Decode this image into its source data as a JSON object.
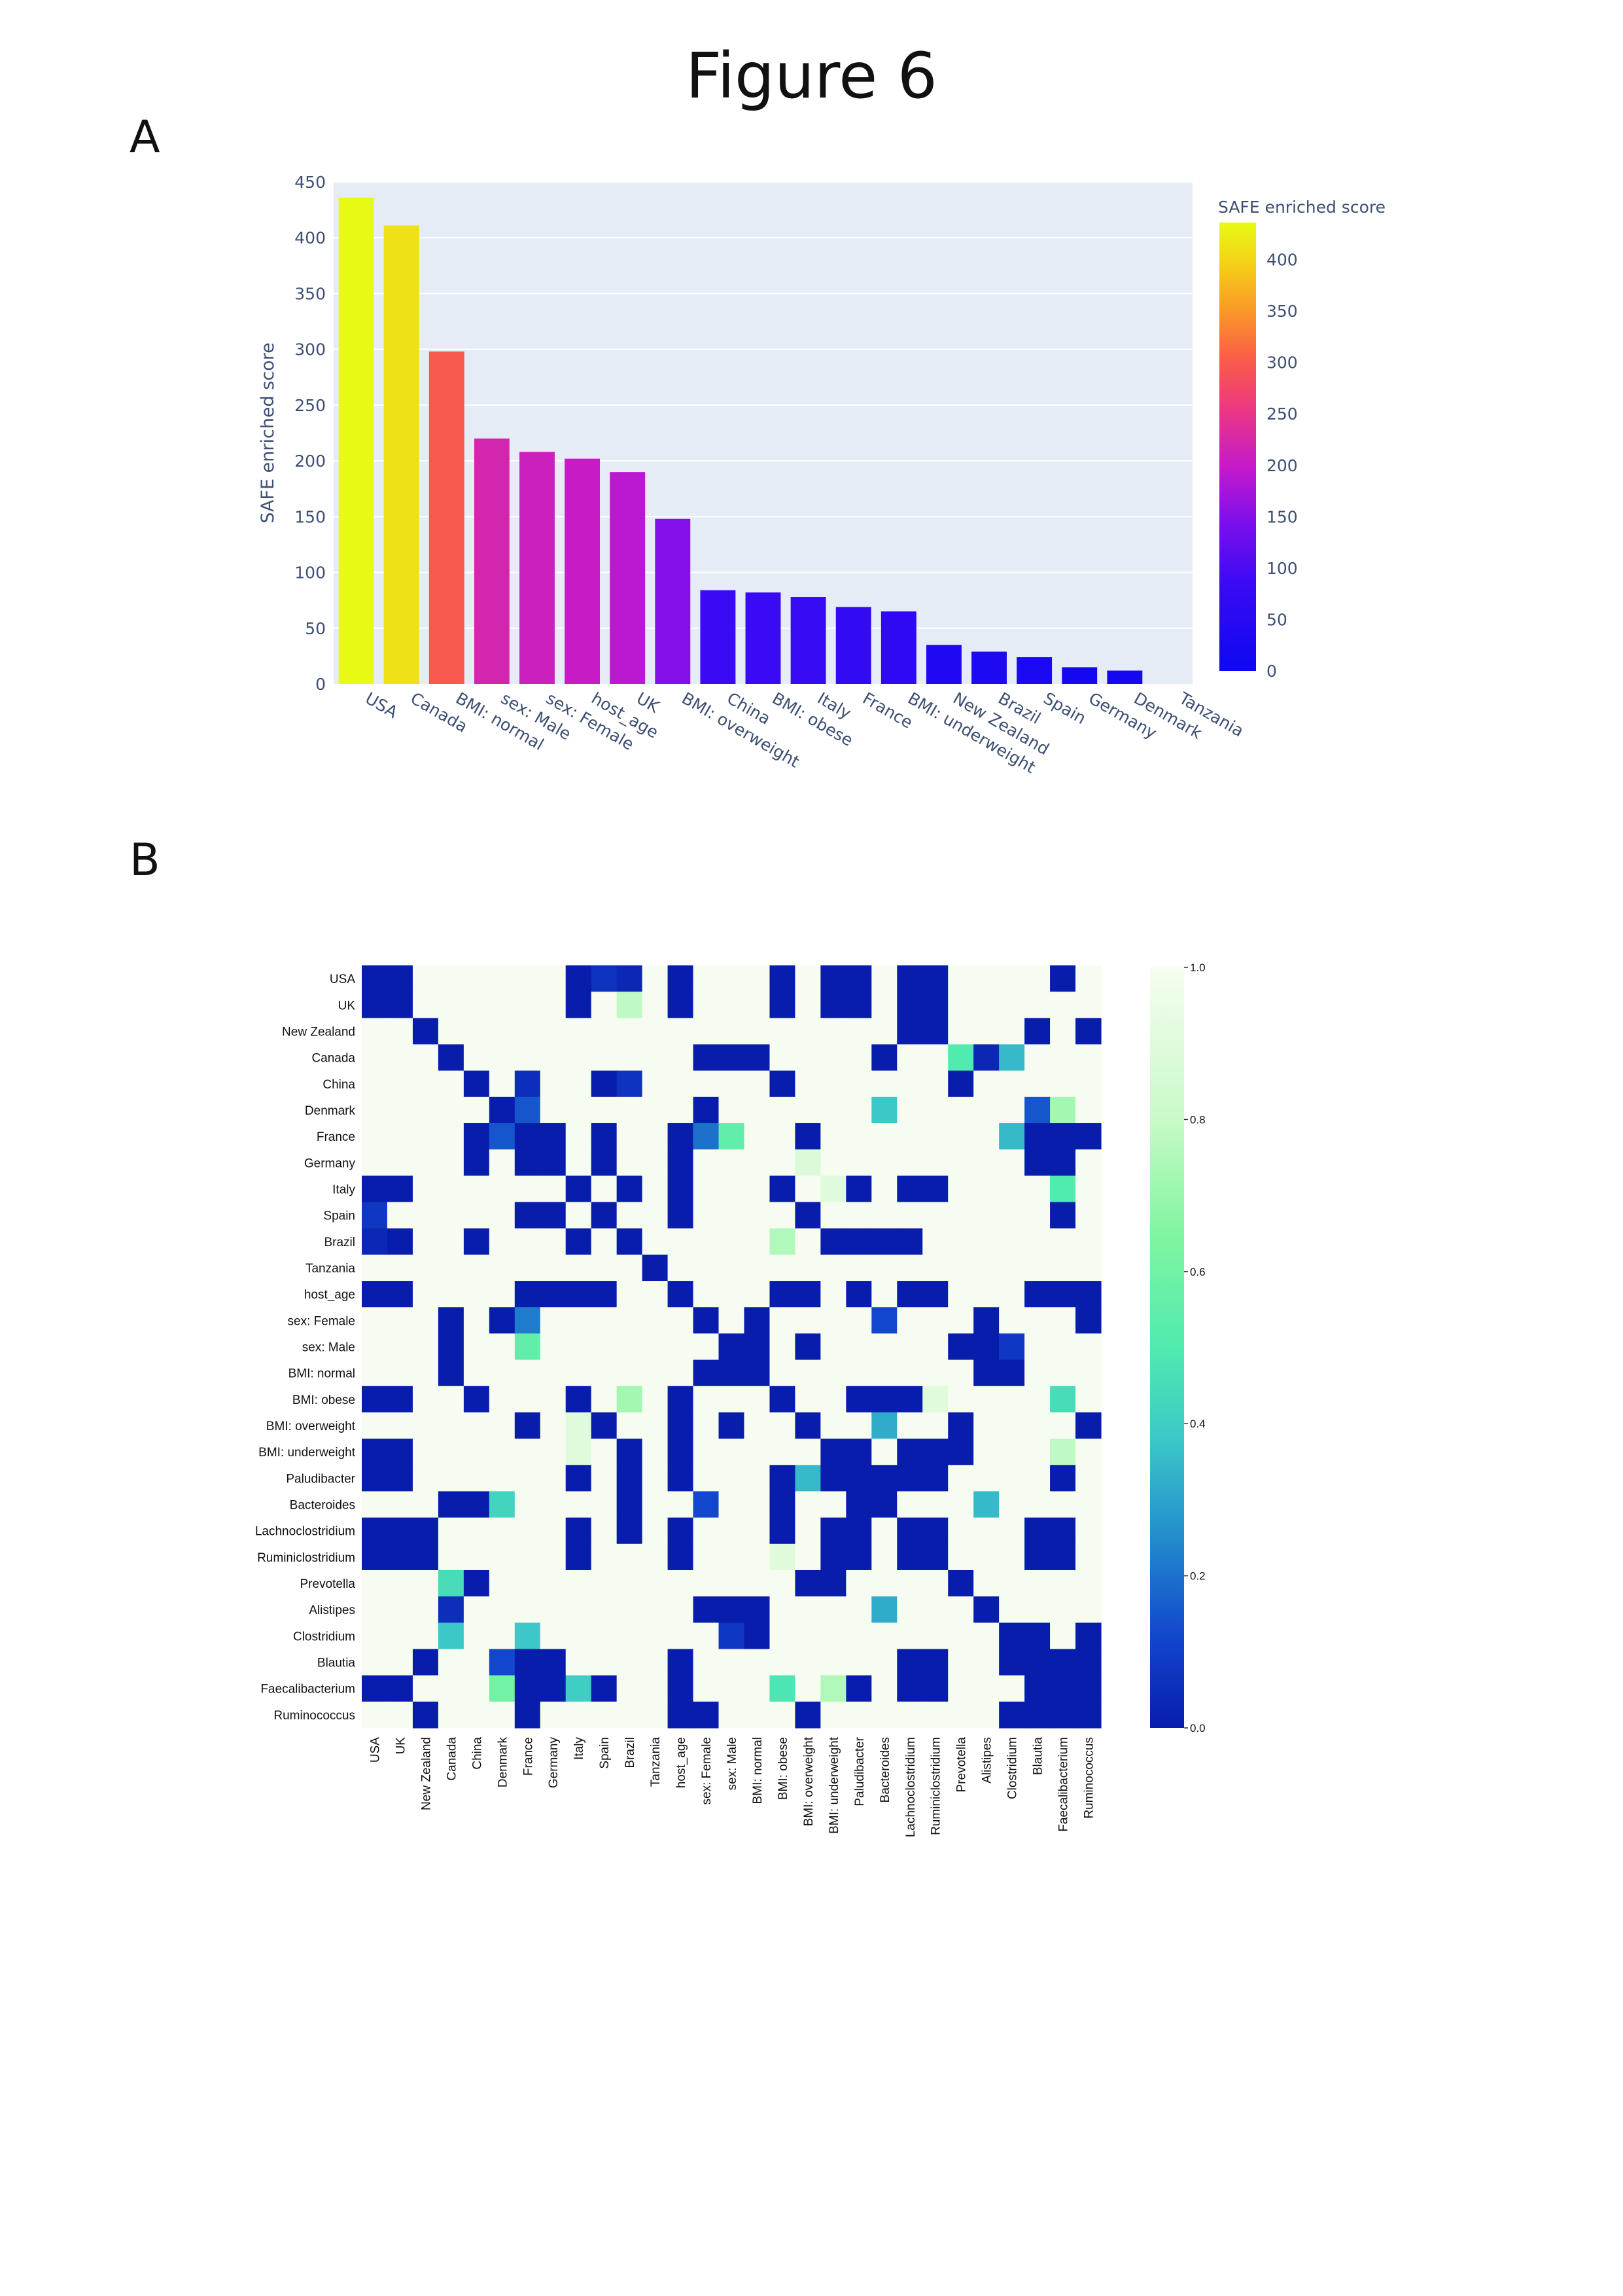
{
  "figure_title": "Figure 6",
  "panel_labels": [
    "A",
    "B"
  ],
  "chart_data": [
    {
      "type": "bar",
      "categories": [
        "USA",
        "Canada",
        "BMI: normal",
        "sex: Male",
        "sex: Female",
        "host_age",
        "UK",
        "BMI: overweight",
        "China",
        "BMI: obese",
        "Italy",
        "France",
        "BMI: underweight",
        "New Zealand",
        "Brazil",
        "Spain",
        "Germany",
        "Denmark",
        "Tanzania"
      ],
      "values": [
        436,
        411,
        298,
        220,
        208,
        202,
        190,
        148,
        84,
        82,
        78,
        69,
        65,
        35,
        29,
        24,
        15,
        12,
        0
      ],
      "ylabel": "SAFE enriched score",
      "ylim": [
        0,
        450
      ],
      "yticks": [
        0,
        50,
        100,
        150,
        200,
        250,
        300,
        350,
        400,
        450
      ],
      "grid": true,
      "colorbar": {
        "title": "SAFE enriched score",
        "range": [
          0,
          436
        ],
        "ticks": [
          0,
          50,
          100,
          150,
          200,
          250,
          300,
          350,
          400
        ]
      },
      "colorscale": "plasma",
      "plot_background": "#e5ecf6"
    },
    {
      "type": "heatmap",
      "labels": [
        "USA",
        "UK",
        "New Zealand",
        "Canada",
        "China",
        "Denmark",
        "France",
        "Germany",
        "Italy",
        "Spain",
        "Brazil",
        "Tanzania",
        "host_age",
        "sex: Female",
        "sex: Male",
        "BMI: normal",
        "BMI: obese",
        "BMI: overweight",
        "BMI: underweight",
        "Paludibacter",
        "Bacteroides",
        "Lachnoclostridium",
        "Ruminiclostridium",
        "Prevotella",
        "Alistipes",
        "Clostridium",
        "Blautia",
        "Faecalibacterium",
        "Ruminococcus"
      ],
      "colorscale": "GnBu_r",
      "colorbar_range": [
        0.0,
        1.0
      ],
      "colorbar_ticks": [
        "0.0",
        "0.2",
        "0.4",
        "0.6",
        "0.8",
        "1.0"
      ],
      "low_cells": [
        [
          0,
          0
        ],
        [
          0,
          1
        ],
        [
          0,
          8
        ],
        [
          0,
          10
        ],
        [
          0,
          12
        ],
        [
          0,
          16
        ],
        [
          0,
          18
        ],
        [
          0,
          19
        ],
        [
          0,
          21
        ],
        [
          0,
          22
        ],
        [
          0,
          27
        ],
        [
          1,
          0
        ],
        [
          1,
          1
        ],
        [
          1,
          8
        ],
        [
          1,
          12
        ],
        [
          1,
          16
        ],
        [
          1,
          18
        ],
        [
          1,
          19
        ],
        [
          1,
          21
        ],
        [
          1,
          22
        ],
        [
          2,
          2
        ],
        [
          2,
          21
        ],
        [
          2,
          22
        ],
        [
          2,
          26
        ],
        [
          2,
          28
        ],
        [
          3,
          3
        ],
        [
          3,
          13
        ],
        [
          3,
          14
        ],
        [
          3,
          15
        ],
        [
          3,
          20
        ],
        [
          3,
          24
        ],
        [
          4,
          4
        ],
        [
          4,
          9
        ],
        [
          4,
          16
        ],
        [
          4,
          23
        ],
        [
          5,
          5
        ],
        [
          5,
          13
        ],
        [
          6,
          4
        ],
        [
          6,
          6
        ],
        [
          6,
          7
        ],
        [
          6,
          9
        ],
        [
          6,
          12
        ],
        [
          6,
          17
        ],
        [
          6,
          26
        ],
        [
          6,
          27
        ],
        [
          6,
          28
        ],
        [
          7,
          4
        ],
        [
          7,
          6
        ],
        [
          7,
          7
        ],
        [
          7,
          9
        ],
        [
          7,
          12
        ],
        [
          7,
          26
        ],
        [
          7,
          27
        ],
        [
          8,
          0
        ],
        [
          8,
          1
        ],
        [
          8,
          8
        ],
        [
          8,
          10
        ],
        [
          8,
          12
        ],
        [
          8,
          16
        ],
        [
          8,
          19
        ],
        [
          8,
          21
        ],
        [
          8,
          22
        ],
        [
          9,
          6
        ],
        [
          9,
          7
        ],
        [
          9,
          9
        ],
        [
          9,
          12
        ],
        [
          9,
          17
        ],
        [
          9,
          27
        ],
        [
          10,
          1
        ],
        [
          10,
          4
        ],
        [
          10,
          8
        ],
        [
          10,
          10
        ],
        [
          10,
          18
        ],
        [
          10,
          19
        ],
        [
          10,
          20
        ],
        [
          10,
          21
        ],
        [
          11,
          11
        ],
        [
          12,
          0
        ],
        [
          12,
          1
        ],
        [
          12,
          6
        ],
        [
          12,
          7
        ],
        [
          12,
          8
        ],
        [
          12,
          9
        ],
        [
          12,
          12
        ],
        [
          12,
          16
        ],
        [
          12,
          17
        ],
        [
          12,
          19
        ],
        [
          12,
          21
        ],
        [
          12,
          22
        ],
        [
          12,
          26
        ],
        [
          12,
          27
        ],
        [
          12,
          28
        ],
        [
          13,
          3
        ],
        [
          13,
          5
        ],
        [
          13,
          13
        ],
        [
          13,
          15
        ],
        [
          13,
          24
        ],
        [
          13,
          28
        ],
        [
          14,
          3
        ],
        [
          14,
          14
        ],
        [
          14,
          15
        ],
        [
          14,
          17
        ],
        [
          14,
          23
        ],
        [
          14,
          24
        ],
        [
          15,
          3
        ],
        [
          15,
          13
        ],
        [
          15,
          14
        ],
        [
          15,
          15
        ],
        [
          15,
          24
        ],
        [
          15,
          25
        ],
        [
          16,
          0
        ],
        [
          16,
          1
        ],
        [
          16,
          4
        ],
        [
          16,
          8
        ],
        [
          16,
          12
        ],
        [
          16,
          16
        ],
        [
          16,
          19
        ],
        [
          16,
          20
        ],
        [
          16,
          21
        ],
        [
          17,
          6
        ],
        [
          17,
          9
        ],
        [
          17,
          12
        ],
        [
          17,
          14
        ],
        [
          17,
          17
        ],
        [
          17,
          23
        ],
        [
          17,
          28
        ],
        [
          18,
          0
        ],
        [
          18,
          1
        ],
        [
          18,
          10
        ],
        [
          18,
          12
        ],
        [
          18,
          18
        ],
        [
          18,
          19
        ],
        [
          18,
          21
        ],
        [
          18,
          22
        ],
        [
          18,
          23
        ],
        [
          19,
          0
        ],
        [
          19,
          1
        ],
        [
          19,
          8
        ],
        [
          19,
          10
        ],
        [
          19,
          12
        ],
        [
          19,
          16
        ],
        [
          19,
          18
        ],
        [
          19,
          19
        ],
        [
          19,
          20
        ],
        [
          19,
          21
        ],
        [
          19,
          22
        ],
        [
          19,
          27
        ],
        [
          20,
          3
        ],
        [
          20,
          4
        ],
        [
          20,
          10
        ],
        [
          20,
          16
        ],
        [
          20,
          19
        ],
        [
          20,
          20
        ],
        [
          21,
          0
        ],
        [
          21,
          1
        ],
        [
          21,
          2
        ],
        [
          21,
          8
        ],
        [
          21,
          10
        ],
        [
          21,
          12
        ],
        [
          21,
          16
        ],
        [
          21,
          18
        ],
        [
          21,
          19
        ],
        [
          21,
          21
        ],
        [
          21,
          22
        ],
        [
          21,
          26
        ],
        [
          21,
          27
        ],
        [
          22,
          0
        ],
        [
          22,
          1
        ],
        [
          22,
          2
        ],
        [
          22,
          8
        ],
        [
          22,
          12
        ],
        [
          22,
          18
        ],
        [
          22,
          19
        ],
        [
          22,
          21
        ],
        [
          22,
          22
        ],
        [
          22,
          26
        ],
        [
          22,
          27
        ],
        [
          23,
          4
        ],
        [
          23,
          17
        ],
        [
          23,
          18
        ],
        [
          23,
          23
        ],
        [
          24,
          3
        ],
        [
          24,
          13
        ],
        [
          24,
          14
        ],
        [
          24,
          15
        ],
        [
          24,
          24
        ],
        [
          25,
          14
        ],
        [
          25,
          15
        ],
        [
          25,
          25
        ],
        [
          25,
          26
        ],
        [
          25,
          28
        ],
        [
          26,
          2
        ],
        [
          26,
          6
        ],
        [
          26,
          7
        ],
        [
          26,
          12
        ],
        [
          26,
          21
        ],
        [
          26,
          22
        ],
        [
          26,
          25
        ],
        [
          26,
          26
        ],
        [
          26,
          27
        ],
        [
          26,
          28
        ],
        [
          27,
          0
        ],
        [
          27,
          1
        ],
        [
          27,
          6
        ],
        [
          27,
          7
        ],
        [
          27,
          9
        ],
        [
          27,
          12
        ],
        [
          27,
          19
        ],
        [
          27,
          21
        ],
        [
          27,
          22
        ],
        [
          27,
          26
        ],
        [
          27,
          27
        ],
        [
          27,
          28
        ],
        [
          28,
          2
        ],
        [
          28,
          6
        ],
        [
          28,
          12
        ],
        [
          28,
          13
        ],
        [
          28,
          17
        ],
        [
          28,
          25
        ],
        [
          28,
          26
        ],
        [
          28,
          27
        ],
        [
          28,
          28
        ]
      ],
      "mid_cells": [
        [
          0,
          9,
          0.06
        ],
        [
          0,
          10,
          0.03
        ],
        [
          1,
          10,
          0.78
        ],
        [
          3,
          23,
          0.5
        ],
        [
          3,
          24,
          0.03
        ],
        [
          3,
          25,
          0.35
        ],
        [
          4,
          6,
          0.05
        ],
        [
          4,
          10,
          0.06
        ],
        [
          5,
          6,
          0.15
        ],
        [
          5,
          20,
          0.38
        ],
        [
          5,
          26,
          0.15
        ],
        [
          5,
          27,
          0.72
        ],
        [
          6,
          5,
          0.15
        ],
        [
          6,
          13,
          0.2
        ],
        [
          6,
          14,
          0.55
        ],
        [
          6,
          25,
          0.35
        ],
        [
          7,
          17,
          0.88
        ],
        [
          8,
          18,
          0.9
        ],
        [
          8,
          27,
          0.5
        ],
        [
          9,
          0,
          0.08
        ],
        [
          10,
          0,
          0.03
        ],
        [
          10,
          16,
          0.75
        ],
        [
          13,
          6,
          0.22
        ],
        [
          13,
          20,
          0.12
        ],
        [
          14,
          6,
          0.55
        ],
        [
          14,
          25,
          0.08
        ],
        [
          16,
          10,
          0.72
        ],
        [
          16,
          22,
          0.9
        ],
        [
          16,
          27,
          0.45
        ],
        [
          17,
          8,
          0.9
        ],
        [
          17,
          20,
          0.32
        ],
        [
          18,
          8,
          0.9
        ],
        [
          18,
          27,
          0.78
        ],
        [
          19,
          17,
          0.35
        ],
        [
          20,
          5,
          0.42
        ],
        [
          20,
          13,
          0.12
        ],
        [
          20,
          24,
          0.35
        ],
        [
          22,
          16,
          0.9
        ],
        [
          23,
          3,
          0.45
        ],
        [
          24,
          3,
          0.05
        ],
        [
          24,
          20,
          0.32
        ],
        [
          25,
          3,
          0.38
        ],
        [
          25,
          6,
          0.38
        ],
        [
          25,
          14,
          0.08
        ],
        [
          26,
          5,
          0.12
        ],
        [
          27,
          5,
          0.6
        ],
        [
          27,
          8,
          0.4
        ],
        [
          27,
          16,
          0.48
        ],
        [
          27,
          18,
          0.75
        ]
      ]
    }
  ]
}
